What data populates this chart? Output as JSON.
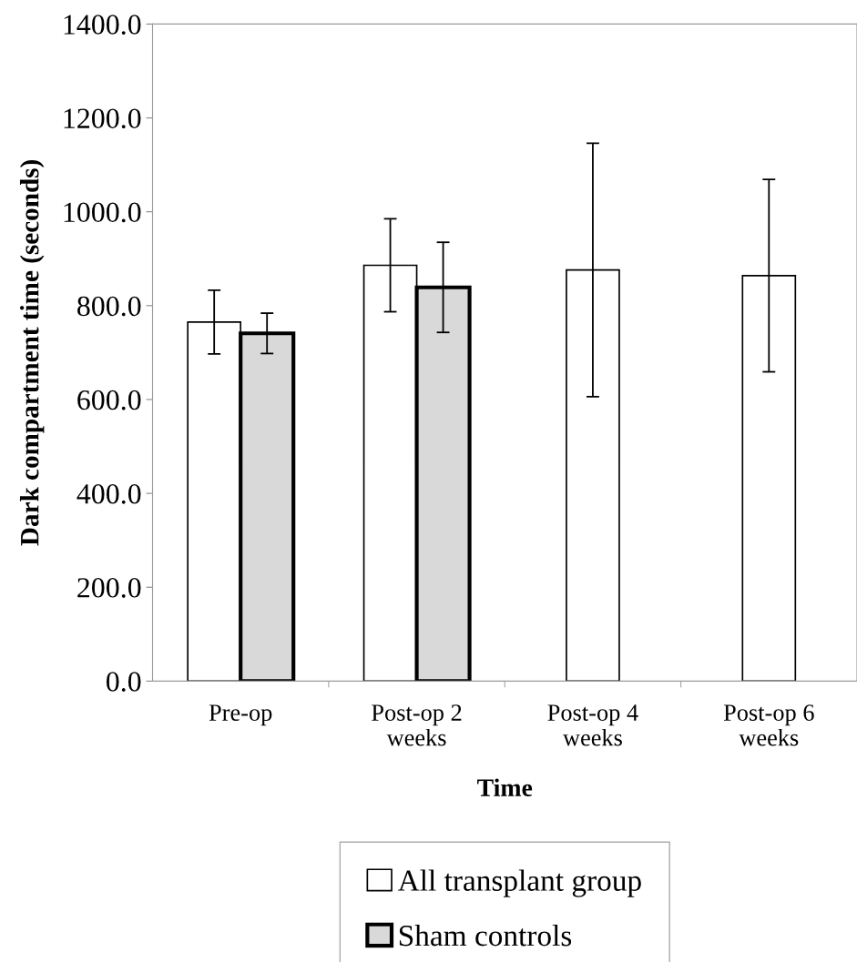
{
  "chart_data": {
    "type": "bar",
    "xlabel": "Time",
    "ylabel": "Dark compartment time (seconds)",
    "categories": [
      "Pre-op",
      "Post-op 2\nweeks",
      "Post-op 4\nweeks",
      "Post-op 6\nweeks"
    ],
    "series": [
      {
        "name": "All transplant group",
        "color": "#ffffff",
        "values": [
          765,
          886,
          876,
          864
        ],
        "errors": [
          68,
          99,
          270,
          205
        ]
      },
      {
        "name": "Sham controls",
        "color": "#d9d9d9",
        "values": [
          741,
          839,
          null,
          null
        ],
        "errors": [
          43,
          96,
          null,
          null
        ]
      }
    ],
    "ylim": [
      0,
      1400
    ],
    "yticks": [
      {
        "value": 0,
        "label": "0.0"
      },
      {
        "value": 200,
        "label": "200.0"
      },
      {
        "value": 400,
        "label": "400.0"
      },
      {
        "value": 600,
        "label": "600.0"
      },
      {
        "value": 800,
        "label": "800.0"
      },
      {
        "value": 1000,
        "label": "1000.0"
      },
      {
        "value": 1200,
        "label": "1200.0"
      },
      {
        "value": 1400,
        "label": "1400.0"
      }
    ],
    "legend": "bottom",
    "grid": false
  }
}
